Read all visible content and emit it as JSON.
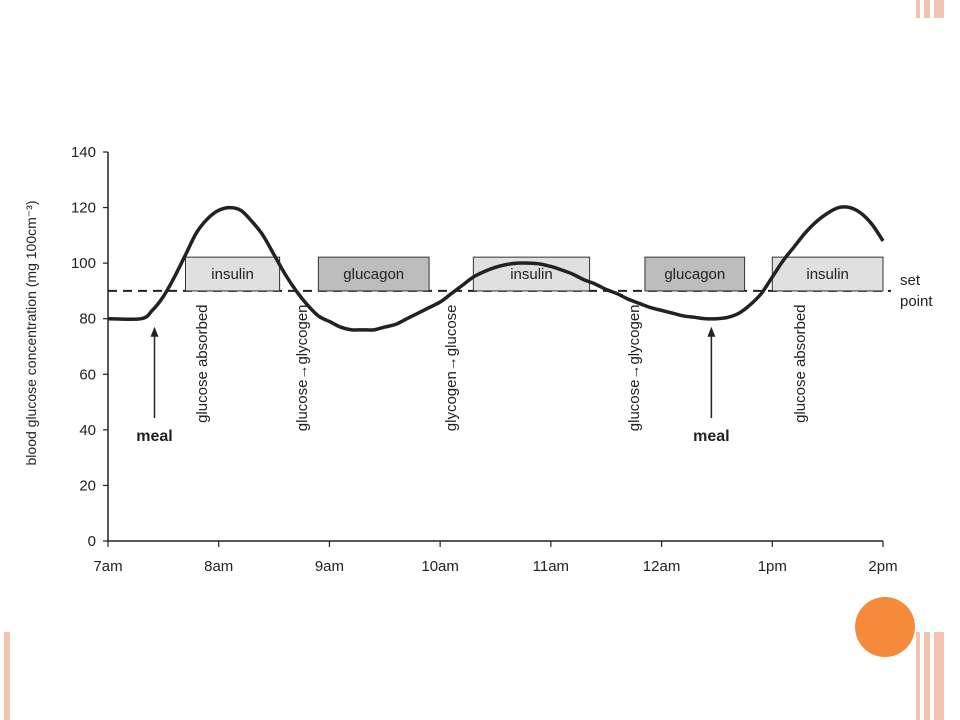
{
  "slide": {
    "accent_color": "#f58a3a",
    "stripe_color": "#f2c3b0"
  },
  "chart_data": {
    "type": "line",
    "title": "",
    "xlabel": "",
    "ylabel": "blood glucose concentration (mg 100cm⁻³)",
    "x_ticks": [
      "7am",
      "8am",
      "9am",
      "10am",
      "11am",
      "12am",
      "1pm",
      "2pm"
    ],
    "ylim": [
      0,
      140
    ],
    "y_ticks": [
      0,
      20,
      40,
      60,
      80,
      100,
      120,
      140
    ],
    "set_point": {
      "value": 90,
      "label_lines": [
        "set",
        "point"
      ]
    },
    "series": [
      {
        "points": [
          [
            7.0,
            80
          ],
          [
            7.3,
            80
          ],
          [
            7.4,
            83
          ],
          [
            7.5,
            88
          ],
          [
            7.6,
            95
          ],
          [
            7.7,
            103
          ],
          [
            7.8,
            111
          ],
          [
            7.9,
            116
          ],
          [
            8.0,
            119
          ],
          [
            8.1,
            120
          ],
          [
            8.2,
            119
          ],
          [
            8.3,
            115
          ],
          [
            8.4,
            110
          ],
          [
            8.5,
            103
          ],
          [
            8.6,
            96
          ],
          [
            8.7,
            90
          ],
          [
            8.8,
            85
          ],
          [
            8.9,
            81
          ],
          [
            9.0,
            79
          ],
          [
            9.1,
            77
          ],
          [
            9.2,
            76
          ],
          [
            9.3,
            76
          ],
          [
            9.4,
            76
          ],
          [
            9.5,
            77
          ],
          [
            9.6,
            78
          ],
          [
            9.7,
            80
          ],
          [
            9.8,
            82
          ],
          [
            9.9,
            84
          ],
          [
            10.0,
            86
          ],
          [
            10.1,
            89
          ],
          [
            10.2,
            92
          ],
          [
            10.3,
            95
          ],
          [
            10.4,
            97
          ],
          [
            10.5,
            98.5
          ],
          [
            10.6,
            99.5
          ],
          [
            10.7,
            100
          ],
          [
            10.8,
            100
          ],
          [
            10.9,
            99.7
          ],
          [
            11.0,
            98.8
          ],
          [
            11.1,
            97.5
          ],
          [
            11.2,
            96
          ],
          [
            11.3,
            94
          ],
          [
            11.4,
            92.5
          ],
          [
            11.5,
            90.5
          ],
          [
            11.6,
            89
          ],
          [
            11.7,
            87
          ],
          [
            11.8,
            85.5
          ],
          [
            11.9,
            84
          ],
          [
            12.0,
            83
          ],
          [
            12.1,
            82
          ],
          [
            12.2,
            81
          ],
          [
            12.3,
            80.5
          ],
          [
            12.4,
            80
          ],
          [
            12.5,
            80
          ],
          [
            12.6,
            80.5
          ],
          [
            12.7,
            82
          ],
          [
            12.8,
            85
          ],
          [
            12.9,
            89
          ],
          [
            13.0,
            95
          ],
          [
            13.1,
            101
          ],
          [
            13.2,
            106
          ],
          [
            13.3,
            111
          ],
          [
            13.4,
            115
          ],
          [
            13.5,
            118
          ],
          [
            13.6,
            120
          ],
          [
            13.7,
            120
          ],
          [
            13.8,
            118
          ],
          [
            13.9,
            114
          ],
          [
            14.0,
            108
          ]
        ]
      }
    ],
    "hormone_boxes": [
      {
        "label": "insulin",
        "x_start": 7.7,
        "x_end": 8.55,
        "fill": "#e0e0e0"
      },
      {
        "label": "glucagon",
        "x_start": 8.9,
        "x_end": 9.9,
        "fill": "#bdbdbd"
      },
      {
        "label": "insulin",
        "x_start": 10.3,
        "x_end": 11.35,
        "fill": "#e0e0e0"
      },
      {
        "label": "glucagon",
        "x_start": 11.85,
        "x_end": 12.75,
        "fill": "#bdbdbd"
      },
      {
        "label": "insulin",
        "x_start": 13.0,
        "x_end": 14.0,
        "fill": "#e0e0e0"
      }
    ],
    "annotations": [
      {
        "text": "glucose absorbed",
        "x": 7.85
      },
      {
        "text": "glucose→glycogen",
        "x": 8.75
      },
      {
        "text": "glycogen→glucose",
        "x": 10.1
      },
      {
        "text": "glucose→glycogen",
        "x": 11.75
      },
      {
        "text": "glucose absorbed",
        "x": 13.25
      }
    ],
    "meals": [
      {
        "label": "meal",
        "x": 7.42
      },
      {
        "label": "meal",
        "x": 12.45
      }
    ]
  }
}
